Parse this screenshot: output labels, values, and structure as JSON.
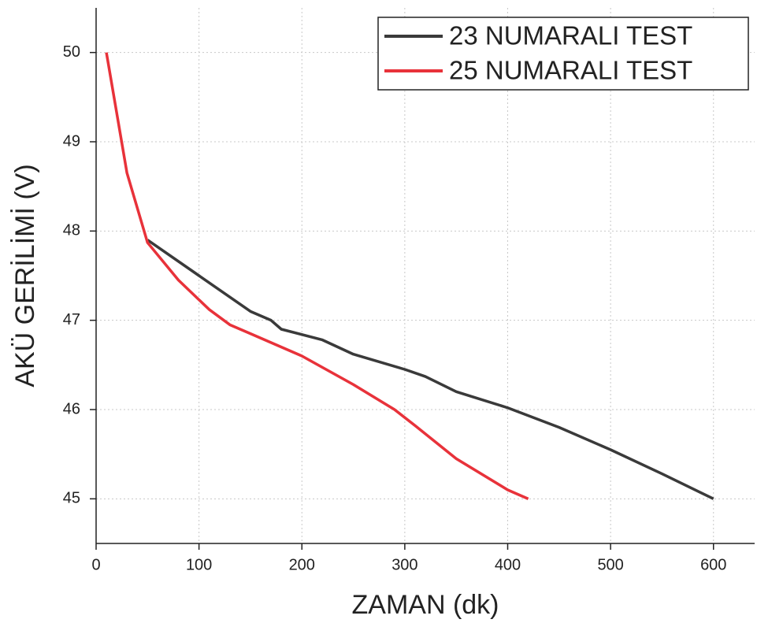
{
  "chart_data": {
    "type": "line",
    "xlabel": "ZAMAN (dk)",
    "ylabel": "AKÜ GERİLİMİ (V)",
    "series": [
      {
        "name": "23 NUMARALI TEST",
        "color": "#3a3a3a",
        "x": [
          50,
          100,
          150,
          170,
          180,
          220,
          250,
          300,
          320,
          350,
          400,
          450,
          500,
          550,
          600
        ],
        "values": [
          47.9,
          47.5,
          47.1,
          47.0,
          46.9,
          46.78,
          46.62,
          46.45,
          46.37,
          46.2,
          46.02,
          45.8,
          45.55,
          45.28,
          45.0
        ]
      },
      {
        "name": "25 NUMARALI TEST",
        "color": "#e8323a",
        "x": [
          10,
          30,
          50,
          80,
          110,
          130,
          150,
          200,
          250,
          290,
          310,
          350,
          400,
          420
        ],
        "values": [
          50.0,
          48.65,
          47.87,
          47.45,
          47.12,
          46.95,
          46.85,
          46.6,
          46.28,
          46.0,
          45.82,
          45.45,
          45.1,
          45.0
        ]
      }
    ],
    "xlim": [
      0,
      640
    ],
    "xticks": [
      0,
      100,
      200,
      300,
      400,
      500,
      600
    ],
    "ylim": [
      44.5,
      50.5
    ],
    "yticks": [
      45,
      46,
      47,
      48,
      49,
      50
    ],
    "grid": true,
    "legend": "upper right"
  }
}
